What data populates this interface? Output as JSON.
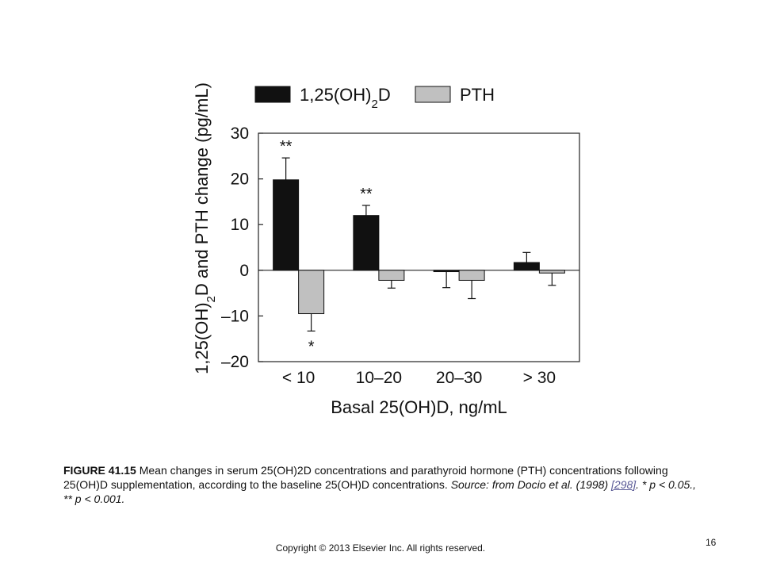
{
  "chart_data": {
    "type": "bar",
    "categories": [
      "< 10",
      "10–20",
      "20–30",
      "> 30"
    ],
    "series": [
      {
        "name": "1,25(OH)",
        "name_sub": "2",
        "name_tail": "D",
        "color": "#111111",
        "values": [
          19.8,
          12.0,
          -0.3,
          1.7
        ],
        "error_bars": [
          4.8,
          2.2,
          3.5,
          2.2
        ],
        "error_direction": [
          "up",
          "up",
          "down",
          "up"
        ],
        "significance": [
          "**",
          "**",
          "",
          ""
        ]
      },
      {
        "name": "PTH",
        "color": "#c0c0c0",
        "values": [
          -9.5,
          -2.2,
          -2.2,
          -0.6
        ],
        "error_bars": [
          3.8,
          1.7,
          4.0,
          2.7
        ],
        "error_direction": [
          "down",
          "down",
          "down",
          "down"
        ],
        "significance": [
          "*",
          "",
          "",
          ""
        ]
      }
    ],
    "ylabel": {
      "part1": "1,25(OH)",
      "sub1": "2",
      "part2": "D and PTH change (pg/mL)"
    },
    "xlabel": "Basal 25(OH)D, ng/mL",
    "ylim": [
      -20,
      30
    ],
    "yticks": [
      30,
      20,
      10,
      0,
      -10,
      -20
    ],
    "ytick_labels": [
      "30",
      "20",
      "10",
      "0",
      "–10",
      "–20"
    ],
    "grid": false,
    "legend_position": "top"
  },
  "caption": {
    "label": "FIGURE 41.15",
    "text": " Mean changes in serum 25(OH)2D concentrations and parathyroid hormone (PTH) concentrations following 25(OH)D supplementation, according to the baseline 25(OH)D concentrations. ",
    "source_label": "Source:",
    "source_text": " from Docio et al. (1998) ",
    "ref": "[298]",
    "sig_text": ". * p < 0.05., ** p < 0.001."
  },
  "footer": {
    "copyright": "Copyright © 2013 Elsevier Inc. All rights reserved.",
    "page_number": "16"
  }
}
